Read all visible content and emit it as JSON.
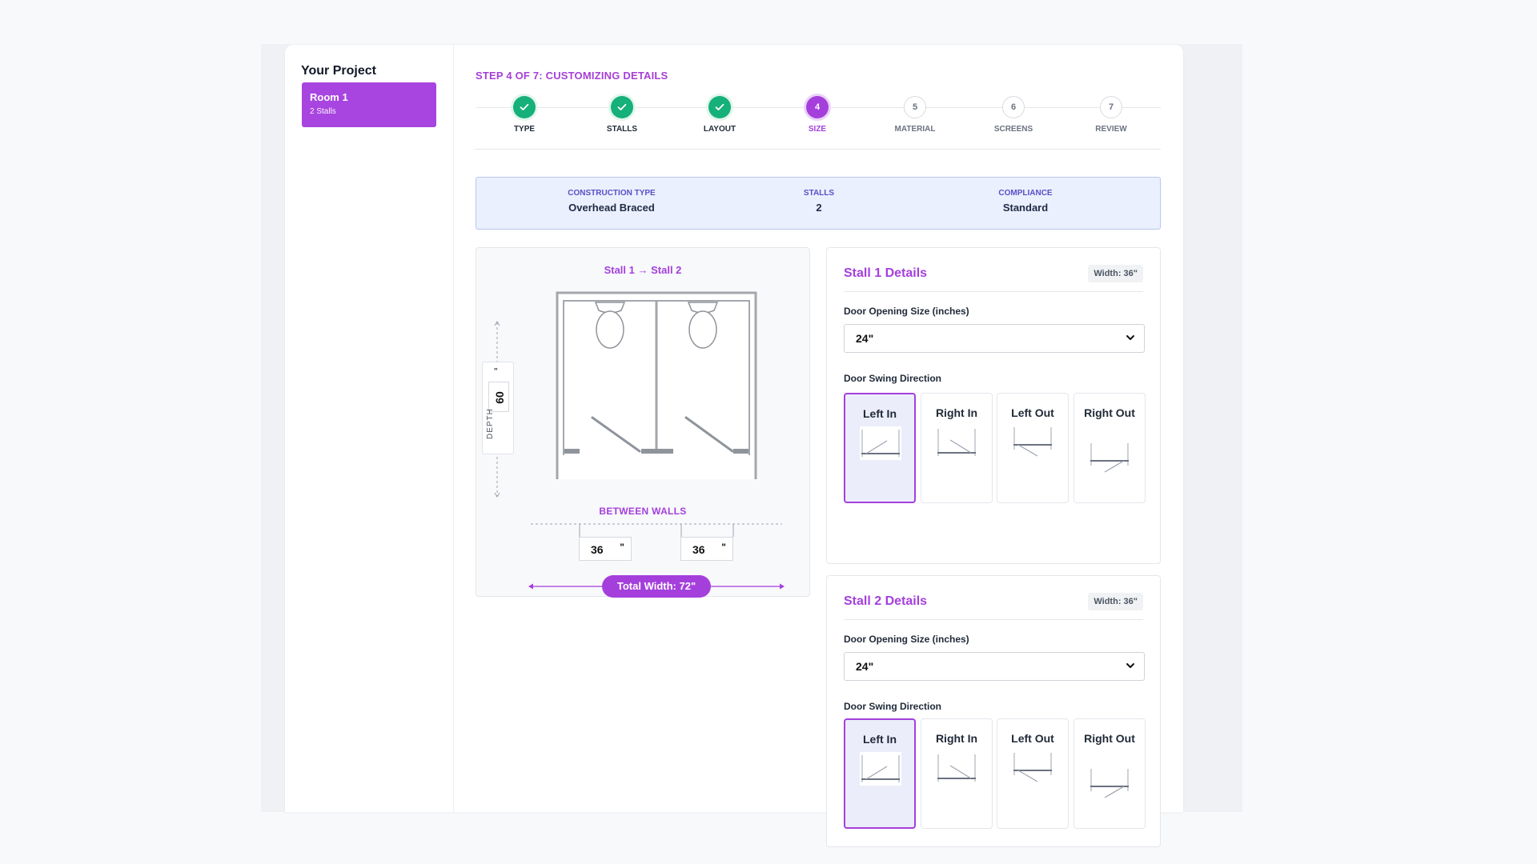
{
  "sidebar": {
    "title": "Your Project",
    "rooms": [
      {
        "name": "Room 1",
        "sub": "2 Stalls"
      }
    ]
  },
  "wizard": {
    "step_title": "STEP 4 OF 7: CUSTOMIZING DETAILS",
    "steps": [
      {
        "label": "TYPE",
        "number": "1",
        "state": "done",
        "icon": "check-icon"
      },
      {
        "label": "STALLS",
        "number": "2",
        "state": "done",
        "icon": "check-icon"
      },
      {
        "label": "LAYOUT",
        "number": "3",
        "state": "done",
        "icon": "check-icon"
      },
      {
        "label": "SIZE",
        "number": "4",
        "state": "active"
      },
      {
        "label": "MATERIAL",
        "number": "5",
        "state": "todo"
      },
      {
        "label": "SCREENS",
        "number": "6",
        "state": "todo"
      },
      {
        "label": "REVIEW",
        "number": "7",
        "state": "todo"
      }
    ]
  },
  "summary": {
    "construction_label": "CONSTRUCTION TYPE",
    "construction_value": "Overhead Braced",
    "stalls_label": "STALLS",
    "stalls_value": "2",
    "compliance_label": "COMPLIANCE",
    "compliance_value": "Standard"
  },
  "diagram": {
    "title": "Stall 1 → Stall 2",
    "depth_label": "DEPTH",
    "depth_value": "60",
    "depth_unit": "\"",
    "between_label": "BETWEEN WALLS",
    "widths": [
      "36",
      "36"
    ],
    "width_unit": "\"",
    "total_width": "Total Width: 72\""
  },
  "stalls": [
    {
      "title": "Stall 1 Details",
      "width_badge": "Width: 36\"",
      "door_label": "Door Opening Size (inches)",
      "door_value": "24\"",
      "swing_label": "Door Swing Direction",
      "swing_options": [
        "Left In",
        "Right In",
        "Left Out",
        "Right Out"
      ],
      "selected_swing": "Left In"
    },
    {
      "title": "Stall 2 Details",
      "width_badge": "Width: 36\"",
      "door_label": "Door Opening Size (inches)",
      "door_value": "24\"",
      "swing_label": "Door Swing Direction",
      "swing_options": [
        "Left In",
        "Right In",
        "Left Out",
        "Right Out"
      ],
      "selected_swing": "Left In"
    }
  ],
  "colors": {
    "accent": "#a43fdc",
    "success": "#16b07a",
    "summary_bg": "#eaf0fd"
  }
}
